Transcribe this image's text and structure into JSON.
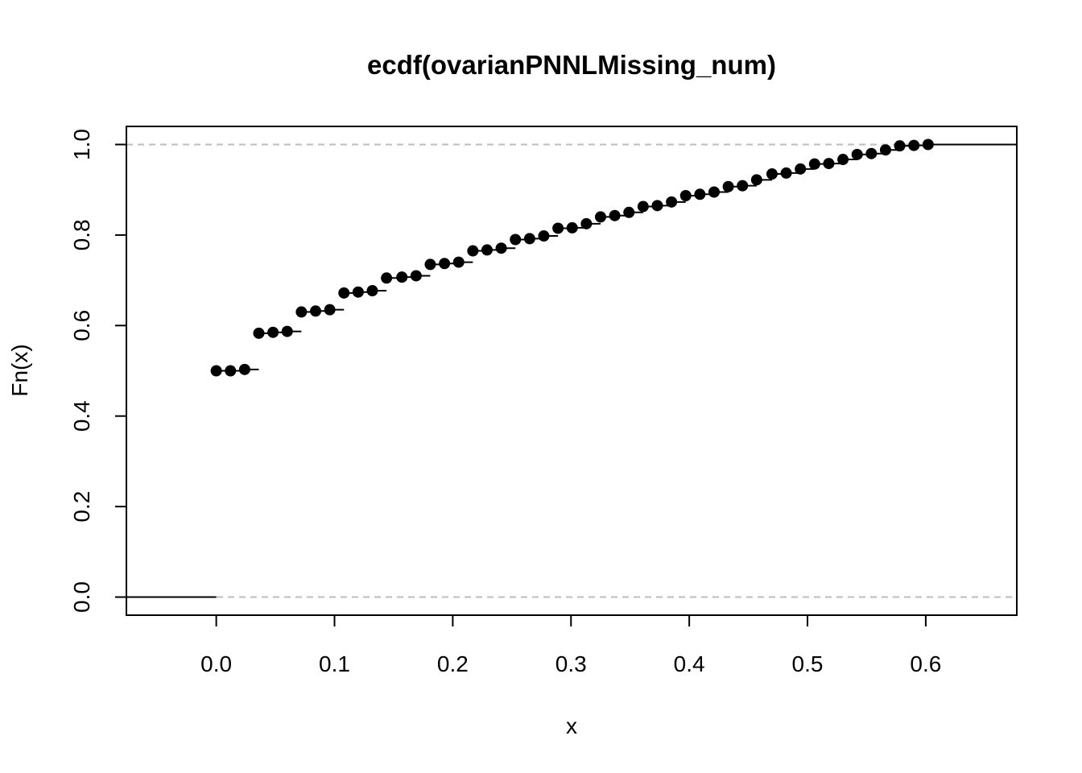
{
  "chart_data": {
    "type": "line",
    "subtype": "ecdf-step",
    "title": "ecdf(ovarianPNNLMissing_num)",
    "xlabel": "x",
    "ylabel": "Fn(x)",
    "xlim": [
      -0.076,
      0.677
    ],
    "ylim": [
      -0.04,
      1.04
    ],
    "x_ticks": [
      0.0,
      0.1,
      0.2,
      0.3,
      0.4,
      0.5,
      0.6
    ],
    "x_tick_labels": [
      "0.0",
      "0.1",
      "0.2",
      "0.3",
      "0.4",
      "0.5",
      "0.6"
    ],
    "y_ticks": [
      0.0,
      0.2,
      0.4,
      0.6,
      0.8,
      1.0
    ],
    "y_tick_labels": [
      "0.0",
      "0.2",
      "0.4",
      "0.6",
      "0.8",
      "1.0"
    ],
    "reference_lines": [
      0.0,
      1.0
    ],
    "grid": false,
    "legend": "none",
    "colors": {
      "points": "#000000",
      "steps": "#000000",
      "reference": "#bebebe"
    },
    "x": [
      0.0,
      0.012,
      0.024,
      0.036,
      0.048,
      0.06,
      0.072,
      0.084,
      0.096,
      0.108,
      0.12,
      0.132,
      0.144,
      0.157,
      0.169,
      0.181,
      0.193,
      0.205,
      0.217,
      0.229,
      0.241,
      0.253,
      0.265,
      0.277,
      0.289,
      0.301,
      0.313,
      0.325,
      0.337,
      0.349,
      0.361,
      0.373,
      0.385,
      0.397,
      0.409,
      0.421,
      0.433,
      0.445,
      0.457,
      0.47,
      0.482,
      0.494,
      0.506,
      0.518,
      0.53,
      0.542,
      0.554,
      0.566,
      0.578,
      0.59,
      0.602
    ],
    "y": [
      0.5,
      0.5,
      0.503,
      0.583,
      0.585,
      0.587,
      0.63,
      0.632,
      0.635,
      0.672,
      0.674,
      0.677,
      0.705,
      0.707,
      0.71,
      0.735,
      0.737,
      0.74,
      0.765,
      0.767,
      0.771,
      0.79,
      0.792,
      0.798,
      0.815,
      0.816,
      0.825,
      0.84,
      0.843,
      0.85,
      0.863,
      0.865,
      0.873,
      0.887,
      0.89,
      0.895,
      0.907,
      0.909,
      0.922,
      0.935,
      0.937,
      0.946,
      0.957,
      0.958,
      0.967,
      0.978,
      0.98,
      0.988,
      0.997,
      0.998,
      1.0
    ]
  }
}
